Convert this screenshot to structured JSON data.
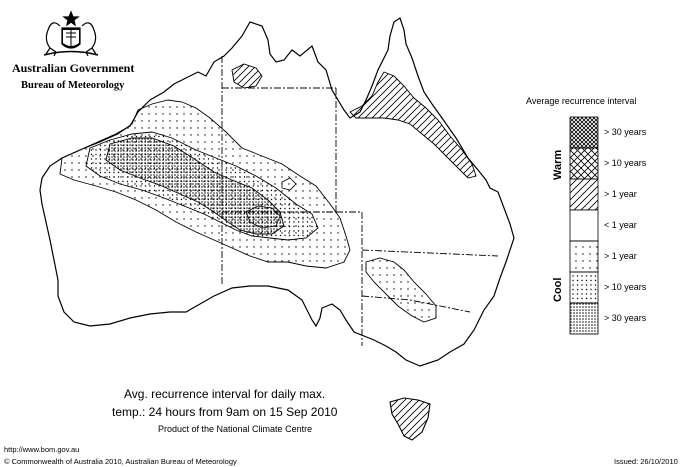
{
  "header": {
    "government": "Australian Government",
    "bureau": "Bureau of Meteorology"
  },
  "caption": {
    "line1": "Avg. recurrence interval for daily max.",
    "line2": "temp.: 24 hours from 9am on 15 Sep 2010",
    "line3": "Product of the National Climate Centre"
  },
  "footer": {
    "url": "http://www.bom.gov.au",
    "copyright": "© Commonwealth of Australia 2010, Australian Bureau of Meteorology",
    "issued": "Issued: 26/10/2010"
  },
  "legend": {
    "title": "Average recurrence interval",
    "warm_label": "Warm",
    "cool_label": "Cool",
    "classes": [
      {
        "label": "> 30 years",
        "group": "warm",
        "pattern": "cross-dense"
      },
      {
        "label": "> 10 years",
        "group": "warm",
        "pattern": "cross"
      },
      {
        "label": "> 1 year",
        "group": "warm",
        "pattern": "diagonal"
      },
      {
        "label": "< 1 year",
        "group": "neutral",
        "pattern": "none"
      },
      {
        "label": "> 1 year",
        "group": "cool",
        "pattern": "dots-sparse"
      },
      {
        "label": "> 10 years",
        "group": "cool",
        "pattern": "dots"
      },
      {
        "label": "> 30 years",
        "group": "cool",
        "pattern": "dots-dense"
      }
    ]
  },
  "map": {
    "region": "Australia",
    "line_color": "#000000",
    "background": "#ffffff"
  }
}
